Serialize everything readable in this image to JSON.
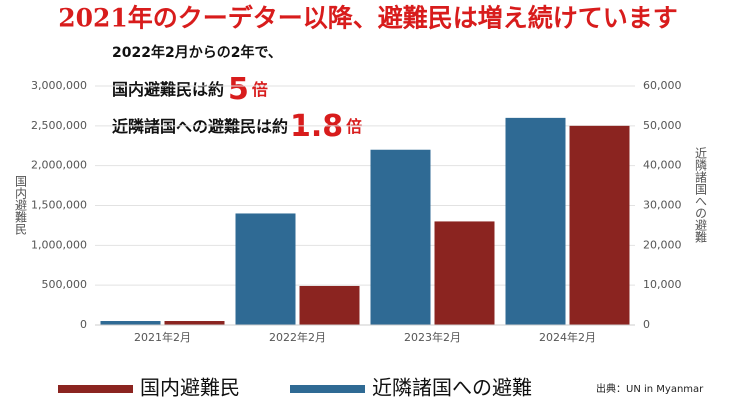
{
  "chart_data": {
    "type": "bar",
    "title": "2021年のクーデター以降、避難民は増え続けています",
    "annotation": {
      "intro": "2022年2月からの2年で、",
      "line1": {
        "text": "国内避難民は約",
        "number": "5",
        "unit": "倍"
      },
      "line2": {
        "text": "近隣諸国への避難民は約",
        "number": "1.8",
        "unit": "倍"
      }
    },
    "ylabel": "国内避難民",
    "y2label": "近隣諸国への避難",
    "source": "出典：UN in Myanmar",
    "categories": [
      "2021年2月",
      "2022年2月",
      "2023年2月",
      "2024年2月"
    ],
    "series": [
      {
        "name": "国内避難民",
        "color": "#8b2420",
        "values": [
          50000,
          490000,
          1300000,
          2500000
        ]
      },
      {
        "name": "近隣諸国への避難",
        "color": "#2f6a94",
        "axis": "y2",
        "values": [
          1000,
          28000,
          44000,
          52000
        ]
      }
    ],
    "ylim": [
      0,
      3000000
    ],
    "yticks": [
      0,
      {
        "value": 500000,
        "label": "500,000"
      },
      {
        "value": 1000000,
        "label": "1,000,000"
      },
      {
        "value": 1500000,
        "label": "1,500,000"
      },
      {
        "value": 2000000,
        "label": "2,000,000"
      },
      {
        "value": 2500000,
        "label": "2,500,000"
      },
      {
        "value": 3000000,
        "label": "3,000,000"
      }
    ],
    "y2lim": [
      0,
      60000
    ],
    "y2ticks": [
      0,
      {
        "value": 10000,
        "label": "10,000"
      },
      {
        "value": 20000,
        "label": "20,000"
      },
      {
        "value": 30000,
        "label": "30,000"
      },
      {
        "value": 40000,
        "label": "40,000"
      },
      {
        "value": 50000,
        "label": "50,000"
      },
      {
        "value": 60000,
        "label": "60,000"
      }
    ],
    "grid": true
  }
}
